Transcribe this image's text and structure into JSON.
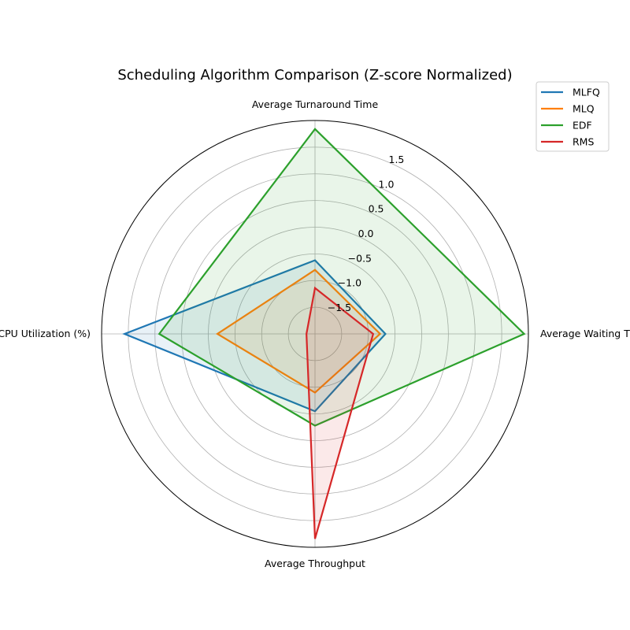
{
  "chart_data": {
    "type": "radar",
    "title": "Scheduling Algorithm Comparison (Z-score Normalized)",
    "axes": [
      "Average Turnaround Time",
      "Average Waiting Time",
      "Average Throughput",
      "Average CPU Utilization (%)"
    ],
    "r_range": [
      -2.0,
      2.0
    ],
    "r_ticks": [
      "−1.5",
      "−1.0",
      "−0.5",
      "0.0",
      "0.5",
      "1.0",
      "1.5"
    ],
    "r_tick_values": [
      -1.5,
      -1.0,
      -0.5,
      0.0,
      0.5,
      1.0,
      1.5
    ],
    "grid": true,
    "legend_position": "top-right",
    "series": [
      {
        "name": "MLFQ",
        "color": "#1f77b4",
        "values": [
          -0.62,
          -0.68,
          -0.55,
          1.57
        ]
      },
      {
        "name": "MLQ",
        "color": "#ff7f0e",
        "values": [
          -0.8,
          -0.78,
          -0.9,
          -0.17
        ]
      },
      {
        "name": "EDF",
        "color": "#2ca02c",
        "values": [
          1.84,
          1.92,
          -0.28,
          0.92
        ]
      },
      {
        "name": "RMS",
        "color": "#d62728",
        "values": [
          -1.14,
          -0.91,
          1.84,
          -1.84
        ]
      }
    ]
  }
}
